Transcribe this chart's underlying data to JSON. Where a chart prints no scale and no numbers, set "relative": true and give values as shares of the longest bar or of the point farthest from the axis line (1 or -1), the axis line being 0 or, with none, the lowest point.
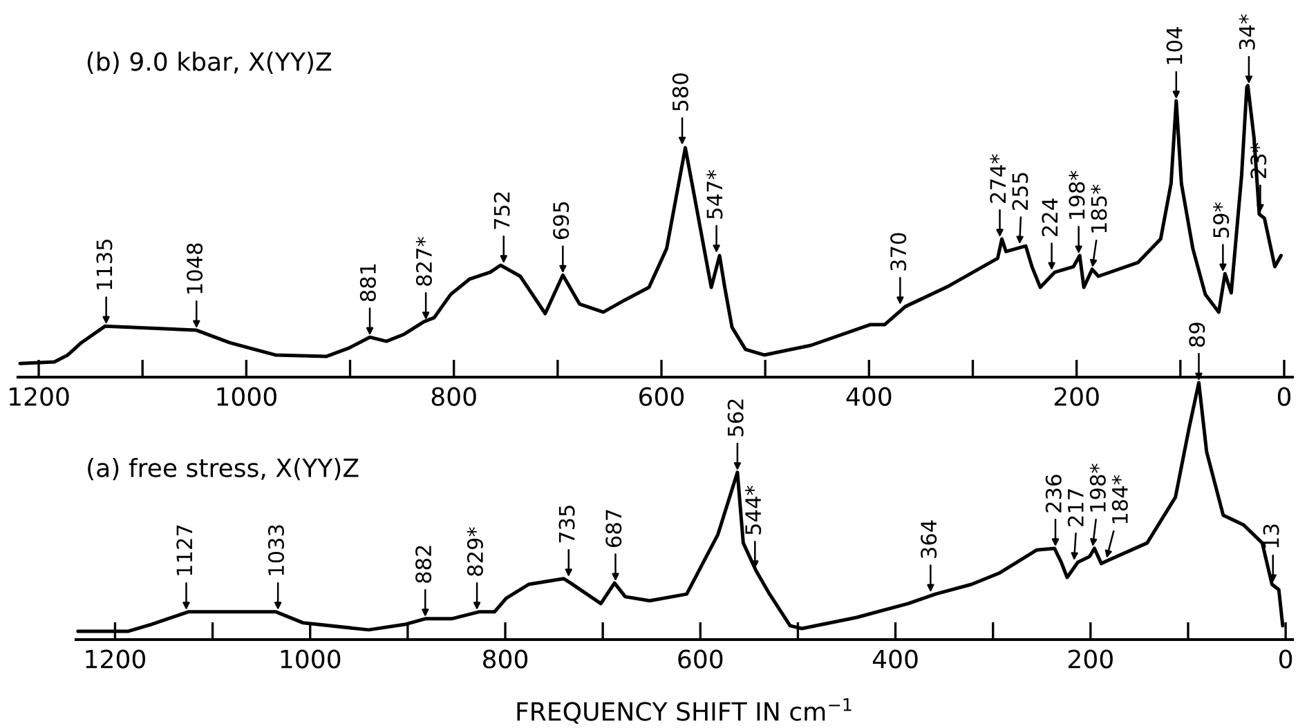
{
  "chart_data": [
    {
      "type": "line",
      "title": "(b) 9.0 kbar, X(YY)Z",
      "relative": true,
      "tick_labels": "x",
      "xlim": [
        1220,
        -8
      ],
      "xticks": [
        1200,
        {
          "value": 1100,
          "label": null
        },
        1000,
        {
          "value": 900,
          "label": null
        },
        800,
        {
          "value": 700,
          "label": null
        },
        600,
        {
          "value": 500,
          "label": null
        },
        400,
        {
          "value": 300,
          "label": null
        },
        200,
        {
          "value": 100,
          "label": null
        },
        0
      ],
      "series": [
        {
          "color": "#000000",
          "x": [
            1218,
            1185,
            1172,
            1159,
            1136,
            1048,
            1016,
            972,
            923,
            901,
            881,
            865,
            848,
            829,
            819,
            803,
            785,
            765,
            755,
            736,
            712,
            695,
            679,
            656,
            635,
            612,
            595,
            577,
            568,
            552,
            544,
            539,
            532,
            519,
            501,
            456,
            399,
            385,
            365,
            323,
            276,
            272,
            268,
            249,
            243,
            235,
            221,
            203,
            197,
            193,
            185,
            179,
            141,
            119,
            109,
            104,
            99,
            88,
            76,
            63,
            57,
            51,
            41,
            36,
            35,
            29,
            24,
            19,
            9,
            3
          ],
          "values": [
            0.047,
            0.052,
            0.076,
            0.118,
            0.175,
            0.161,
            0.118,
            0.076,
            0.071,
            0.1,
            0.137,
            0.123,
            0.147,
            0.19,
            0.204,
            0.284,
            0.336,
            0.36,
            0.384,
            0.346,
            0.218,
            0.35,
            0.251,
            0.223,
            0.265,
            0.308,
            0.441,
            0.787,
            0.616,
            0.308,
            0.417,
            0.308,
            0.171,
            0.095,
            0.076,
            0.109,
            0.18,
            0.18,
            0.242,
            0.313,
            0.408,
            0.474,
            0.431,
            0.45,
            0.379,
            0.308,
            0.36,
            0.379,
            0.417,
            0.308,
            0.37,
            0.346,
            0.393,
            0.474,
            0.664,
            0.948,
            0.664,
            0.441,
            0.284,
            0.223,
            0.355,
            0.289,
            0.692,
            0.995,
            1,
            0.82,
            0.559,
            0.545,
            0.379,
            0.417
          ]
        }
      ],
      "annotations": [
        {
          "text": "1135",
          "x": 1135,
          "y": 0.175
        },
        {
          "text": "1048",
          "x": 1048,
          "y": 0.161
        },
        {
          "text": "881",
          "x": 881,
          "y": 0.137
        },
        {
          "text": "827*",
          "x": 827,
          "y": 0.19
        },
        {
          "text": "752",
          "x": 752,
          "y": 0.384
        },
        {
          "text": "695",
          "x": 695,
          "y": 0.35
        },
        {
          "text": "580",
          "x": 580,
          "y": 0.79
        },
        {
          "text": "547*",
          "x": 547,
          "y": 0.42
        },
        {
          "text": "370",
          "x": 370,
          "y": 0.242
        },
        {
          "text": "274*",
          "x": 274,
          "y": 0.474
        },
        {
          "text": "255",
          "x": 255,
          "y": 0.45
        },
        {
          "text": "224",
          "x": 224,
          "y": 0.36
        },
        {
          "text": "198*",
          "x": 198,
          "y": 0.417
        },
        {
          "text": "185*",
          "x": 185,
          "y": 0.37
        },
        {
          "text": "104",
          "x": 104,
          "y": 0.948
        },
        {
          "text": "59*",
          "x": 59,
          "y": 0.355
        },
        {
          "text": "34*",
          "x": 34,
          "y": 1
        },
        {
          "text": "23*",
          "x": 23,
          "y": 0.559
        }
      ]
    },
    {
      "type": "line",
      "title": "(a) free stress, X(YY)Z",
      "xlabel": "FREQUENCY SHIFT IN cm$^{−1}$",
      "relative": true,
      "tick_labels": "x",
      "xlim": [
        1240,
        -7
      ],
      "xticks": [
        1200,
        {
          "value": 1100,
          "label": null
        },
        1000,
        {
          "value": 900,
          "label": null
        },
        800,
        {
          "value": 700,
          "label": null
        },
        600,
        {
          "value": 500,
          "label": null
        },
        400,
        {
          "value": 300,
          "label": null
        },
        200,
        {
          "value": 100,
          "label": null
        },
        0
      ],
      "series": [
        {
          "color": "#000000",
          "x": [
            1238,
            1187,
            1163,
            1125,
            1035,
            1007,
            940,
            903,
            882,
            855,
            827,
            811,
            799,
            776,
            740,
            733,
            702,
            688,
            677,
            652,
            614,
            582,
            562,
            556,
            543,
            529,
            508,
            496,
            440,
            387,
            359,
            322,
            294,
            255,
            237,
            230,
            224,
            213,
            201,
            196,
            189,
            180,
            142,
            113,
            99,
            89,
            81,
            64,
            43,
            24,
            14,
            7,
            3
          ],
          "values": [
            0.032,
            0.032,
            0.059,
            0.108,
            0.108,
            0.065,
            0.038,
            0.059,
            0.081,
            0.081,
            0.108,
            0.108,
            0.161,
            0.215,
            0.237,
            0.22,
            0.14,
            0.22,
            0.167,
            0.151,
            0.177,
            0.409,
            0.651,
            0.376,
            0.269,
            0.177,
            0.054,
            0.043,
            0.086,
            0.14,
            0.177,
            0.215,
            0.258,
            0.349,
            0.355,
            0.301,
            0.242,
            0.301,
            0.323,
            0.355,
            0.296,
            0.312,
            0.376,
            0.554,
            0.823,
            1,
            0.731,
            0.484,
            0.446,
            0.376,
            0.215,
            0.194,
            0.054
          ]
        }
      ],
      "annotations": [
        {
          "text": "1127",
          "x": 1127,
          "y": 0.108
        },
        {
          "text": "1033",
          "x": 1033,
          "y": 0.108
        },
        {
          "text": "882",
          "x": 882,
          "y": 0.081
        },
        {
          "text": "829*",
          "x": 829,
          "y": 0.108
        },
        {
          "text": "735",
          "x": 735,
          "y": 0.237
        },
        {
          "text": "687",
          "x": 687,
          "y": 0.22
        },
        {
          "text": "562",
          "x": 562,
          "y": 0.651
        },
        {
          "text": "544*",
          "x": 544,
          "y": 0.269
        },
        {
          "text": "364",
          "x": 364,
          "y": 0.177
        },
        {
          "text": "236",
          "x": 236,
          "y": 0.355
        },
        {
          "text": "217",
          "x": 217,
          "y": 0.301
        },
        {
          "text": "198*",
          "x": 198,
          "y": 0.355
        },
        {
          "text": "184*",
          "x": 184,
          "y": 0.31
        },
        {
          "text": "89",
          "x": 89,
          "y": 1
        },
        {
          "text": "13",
          "x": 13,
          "y": 0.215
        }
      ]
    }
  ]
}
